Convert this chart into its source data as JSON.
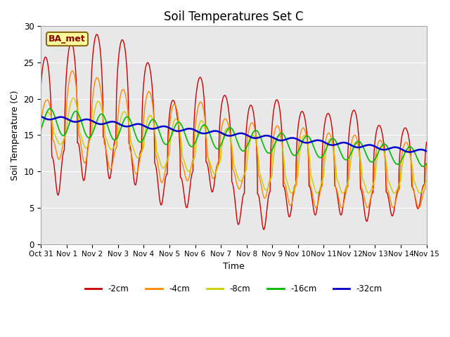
{
  "title": "Soil Temperatures Set C",
  "xlabel": "Time",
  "ylabel": "Soil Temperature (C)",
  "annotation": "BA_met",
  "x_tick_labels": [
    "Oct 31",
    "Nov 1",
    "Nov 2",
    "Nov 3",
    "Nov 4",
    "Nov 5",
    "Nov 6",
    "Nov 7",
    "Nov 8",
    "Nov 9",
    "Nov 10",
    "Nov 11",
    "Nov 12",
    "Nov 13",
    "Nov 14",
    "Nov 15"
  ],
  "ylim": [
    0,
    30
  ],
  "colors": {
    "-2cm": "#cc0000",
    "-4cm": "#ff8800",
    "-8cm": "#cccc00",
    "-16cm": "#00bb00",
    "-32cm": "#0000cc"
  },
  "bg_color": "#e8e8e8",
  "title_fontsize": 12,
  "axis_fontsize": 9,
  "n_points": 1500
}
